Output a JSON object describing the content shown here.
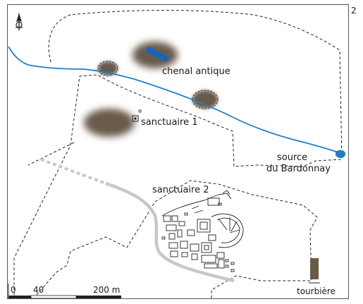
{
  "figure_number": "2",
  "labels": {
    "chenal": "chenal antique",
    "sanctuaire1": "sanctuaire 1",
    "sanctuaire2": "sanctuaire 2",
    "source_line1": "source",
    "source_line2": "du Bardonnay"
  },
  "scale_bar": {
    "tick0": "0",
    "tick40": "40",
    "tick200": "200 m"
  },
  "legend": {
    "tourbiere": "tourbière"
  },
  "colors": {
    "river": "#1f7fc6",
    "peat": "#6b5a48",
    "road": "#c8c8c8",
    "boundary": "#222222",
    "channel": "#1565c0"
  },
  "icons": {
    "north": "north-arrow-icon"
  }
}
